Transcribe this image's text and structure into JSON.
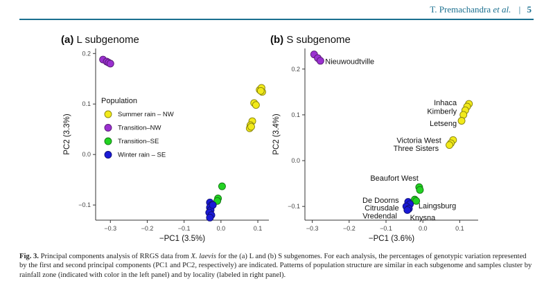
{
  "header": {
    "authors_plain": "T. Premachandra ",
    "authors_italic": "et al.",
    "separator": "|",
    "page": "5"
  },
  "chart_data": [
    {
      "type": "scatter",
      "panel": "(a)",
      "title": "L subgenome",
      "xlabel": "−PC1 (3.5%)",
      "ylabel": "PC2 (3.3%)",
      "xlim": [
        -0.34,
        0.13
      ],
      "ylim": [
        -0.13,
        0.21
      ],
      "xticks": [
        {
          "v": -0.3,
          "t": "−0.3"
        },
        {
          "v": -0.2,
          "t": "−0.2"
        },
        {
          "v": -0.1,
          "t": "−0.1"
        },
        {
          "v": 0.0,
          "t": "0.0"
        },
        {
          "v": 0.1,
          "t": "0.1"
        }
      ],
      "yticks": [
        {
          "v": -0.1,
          "t": "−0.1"
        },
        {
          "v": 0.0,
          "t": "0.0"
        },
        {
          "v": 0.1,
          "t": "0.1"
        },
        {
          "v": 0.2,
          "t": "0.2"
        }
      ],
      "legend": {
        "title": "Population",
        "items": [
          {
            "label": "Summer rain – NW",
            "color": "#f2ea1a"
          },
          {
            "label": "Transition–NW",
            "color": "#9b30d0"
          },
          {
            "label": "Transition–SE",
            "color": "#22d322"
          },
          {
            "label": "Winter rain – SE",
            "color": "#1a1ad6"
          }
        ]
      },
      "series": [
        {
          "color": "#9b30d0",
          "points": [
            [
              -0.32,
              0.188
            ],
            [
              -0.31,
              0.184
            ],
            [
              -0.305,
              0.182
            ],
            [
              -0.3,
              0.18
            ]
          ]
        },
        {
          "color": "#f2ea1a",
          "points": [
            [
              0.105,
              0.128
            ],
            [
              0.11,
              0.132
            ],
            [
              0.112,
              0.124
            ],
            [
              0.108,
              0.126
            ],
            [
              0.09,
              0.102
            ],
            [
              0.095,
              0.098
            ],
            [
              0.085,
              0.066
            ],
            [
              0.08,
              0.058
            ],
            [
              0.078,
              0.052
            ],
            [
              0.082,
              0.055
            ]
          ]
        },
        {
          "color": "#22d322",
          "points": [
            [
              0.003,
              -0.063
            ],
            [
              -0.008,
              -0.087
            ],
            [
              -0.01,
              -0.092
            ]
          ]
        },
        {
          "color": "#1a1ad6",
          "points": [
            [
              -0.03,
              -0.095
            ],
            [
              -0.025,
              -0.1
            ],
            [
              -0.03,
              -0.105
            ],
            [
              -0.028,
              -0.11
            ],
            [
              -0.032,
              -0.115
            ],
            [
              -0.026,
              -0.12
            ],
            [
              -0.022,
              -0.1
            ],
            [
              -0.03,
              -0.125
            ]
          ]
        }
      ],
      "labels": []
    },
    {
      "type": "scatter",
      "panel": "(b)",
      "title": "S subgenome",
      "xlabel": "−PC1 (3.6%)",
      "ylabel": "PC2 (3.4%)",
      "xlim": [
        -0.32,
        0.15
      ],
      "ylim": [
        -0.13,
        0.245
      ],
      "xticks": [
        {
          "v": -0.3,
          "t": "−0.3"
        },
        {
          "v": -0.2,
          "t": "−0.2"
        },
        {
          "v": -0.1,
          "t": "−0.1"
        },
        {
          "v": 0.0,
          "t": "0.0"
        },
        {
          "v": 0.1,
          "t": "0.1"
        }
      ],
      "yticks": [
        {
          "v": -0.1,
          "t": "−0.1"
        },
        {
          "v": 0.0,
          "t": "0.0"
        },
        {
          "v": 0.1,
          "t": "0.1"
        },
        {
          "v": 0.2,
          "t": "0.2"
        }
      ],
      "legend": null,
      "series": [
        {
          "color": "#9b30d0",
          "points": [
            [
              -0.295,
              0.232
            ],
            [
              -0.285,
              0.224
            ],
            [
              -0.278,
              0.218
            ]
          ]
        },
        {
          "color": "#f2ea1a",
          "points": [
            [
              0.125,
              0.124
            ],
            [
              0.12,
              0.118
            ],
            [
              0.115,
              0.11
            ],
            [
              0.11,
              0.1
            ],
            [
              0.105,
              0.087
            ],
            [
              0.082,
              0.045
            ],
            [
              0.076,
              0.038
            ],
            [
              0.072,
              0.034
            ]
          ]
        },
        {
          "color": "#22d322",
          "points": [
            [
              -0.01,
              -0.058
            ],
            [
              -0.008,
              -0.064
            ],
            [
              -0.022,
              -0.085
            ],
            [
              -0.018,
              -0.088
            ]
          ]
        },
        {
          "color": "#1a1ad6",
          "points": [
            [
              -0.04,
              -0.09
            ],
            [
              -0.035,
              -0.095
            ],
            [
              -0.045,
              -0.1
            ],
            [
              -0.038,
              -0.105
            ],
            [
              -0.042,
              -0.108
            ]
          ]
        }
      ],
      "labels": [
        {
          "text": "Nieuwoudtville",
          "x": -0.265,
          "y": 0.217,
          "anchor": "start"
        },
        {
          "text": "Inhaca",
          "x": 0.092,
          "y": 0.127,
          "anchor": "end"
        },
        {
          "text": "Kimberly",
          "x": 0.092,
          "y": 0.108,
          "anchor": "end"
        },
        {
          "text": "Letseng",
          "x": 0.092,
          "y": 0.082,
          "anchor": "end"
        },
        {
          "text": "Victoria West",
          "x": 0.05,
          "y": 0.045,
          "anchor": "end"
        },
        {
          "text": "Three Sisters",
          "x": 0.043,
          "y": 0.027,
          "anchor": "end"
        },
        {
          "text": "Beaufort West",
          "x": -0.012,
          "y": -0.038,
          "anchor": "end"
        },
        {
          "text": "De Doorns",
          "x": -0.065,
          "y": -0.086,
          "anchor": "end"
        },
        {
          "text": "Citrusdale",
          "x": -0.065,
          "y": -0.103,
          "anchor": "end"
        },
        {
          "text": "Laingsburg",
          "x": -0.012,
          "y": -0.098,
          "anchor": "start"
        },
        {
          "text": "Vredendal",
          "x": -0.07,
          "y": -0.12,
          "anchor": "end"
        },
        {
          "text": "Knysna",
          "x": -0.035,
          "y": -0.124,
          "anchor": "start"
        }
      ]
    }
  ],
  "caption": {
    "fig_label": "Fig. 3.",
    "text_1": " Principal components analysis of RRGS data from ",
    "species": "X. laevis",
    "text_2": " for the (a) L and (b) S subgenomes. For each analysis, the percentages of genotypic variation represented by the first and second principal components (PC1 and PC2, respectively) are indicated. Patterns of population structure are similar in each subgenome and samples cluster by rainfall zone (indicated with color in the left panel) and by locality (labeled in right panel)."
  }
}
